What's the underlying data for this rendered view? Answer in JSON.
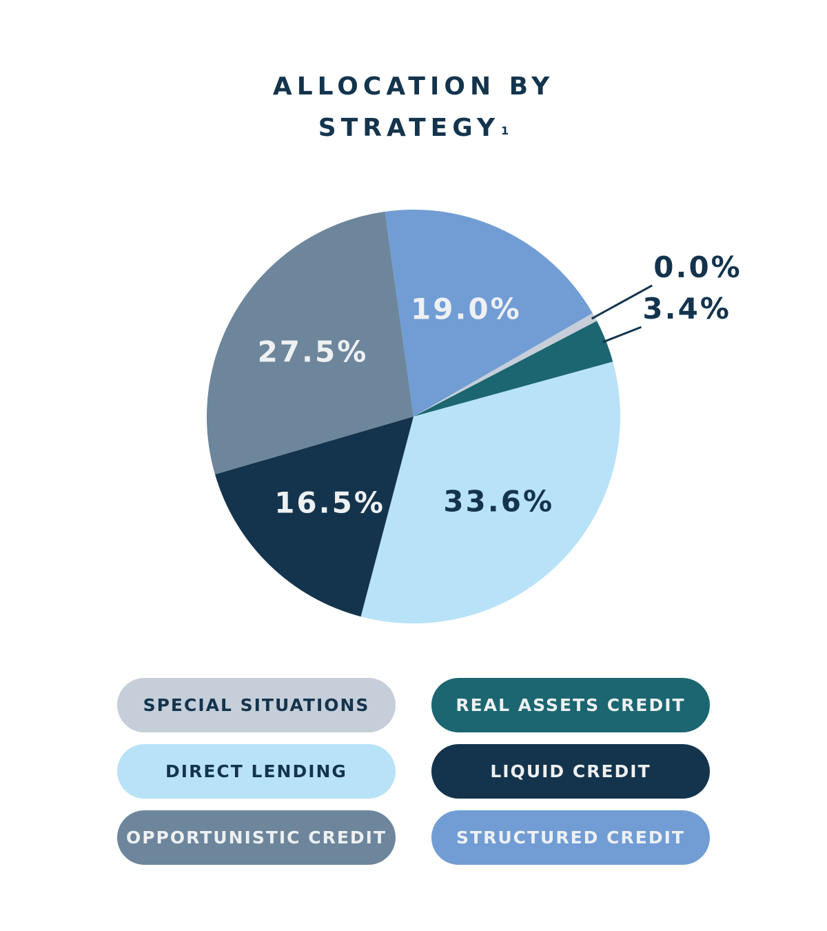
{
  "title": {
    "line1": "ALLOCATION BY",
    "line2": "STRATEGY",
    "footnote": "1"
  },
  "chart_data": {
    "type": "pie",
    "title": "ALLOCATION BY STRATEGY",
    "slices": [
      {
        "name": "SPECIAL SITUATIONS",
        "value": 0.0,
        "label": "0.0%",
        "color": "#c5ced9",
        "label_color": "#14344d",
        "label_outside": true
      },
      {
        "name": "REAL ASSETS CREDIT",
        "value": 3.4,
        "label": "3.4%",
        "color": "#1b6670",
        "label_color": "#14344d",
        "label_outside": true
      },
      {
        "name": "DIRECT LENDING",
        "value": 33.6,
        "label": "33.6%",
        "color": "#b8e2f7",
        "label_color": "#14344d",
        "label_outside": false
      },
      {
        "name": "LIQUID CREDIT",
        "value": 16.5,
        "label": "16.5%",
        "color": "#14344d",
        "label_color": "#eef0f2",
        "label_outside": false
      },
      {
        "name": "OPPORTUNISTIC CREDIT",
        "value": 27.5,
        "label": "27.5%",
        "color": "#6d869c",
        "label_color": "#eef0f2",
        "label_outside": false
      },
      {
        "name": "STRUCTURED CREDIT",
        "value": 19.0,
        "label": "19.0%",
        "color": "#719dd4",
        "label_color": "#eef0f2",
        "label_outside": false
      }
    ],
    "legend_placement": "bottom"
  },
  "legend": [
    {
      "label": "SPECIAL SITUATIONS",
      "bg": "#c5ced9",
      "fg": "#14344d"
    },
    {
      "label": "REAL ASSETS CREDIT",
      "bg": "#1b6670",
      "fg": "#eef0f2"
    },
    {
      "label": "DIRECT LENDING",
      "bg": "#b8e2f7",
      "fg": "#14344d"
    },
    {
      "label": "LIQUID CREDIT",
      "bg": "#14344d",
      "fg": "#eef0f2"
    },
    {
      "label": "OPPORTUNISTIC CREDIT",
      "bg": "#6d869c",
      "fg": "#eef0f2"
    },
    {
      "label": "STRUCTURED CREDIT",
      "bg": "#719dd4",
      "fg": "#eef0f2"
    }
  ]
}
